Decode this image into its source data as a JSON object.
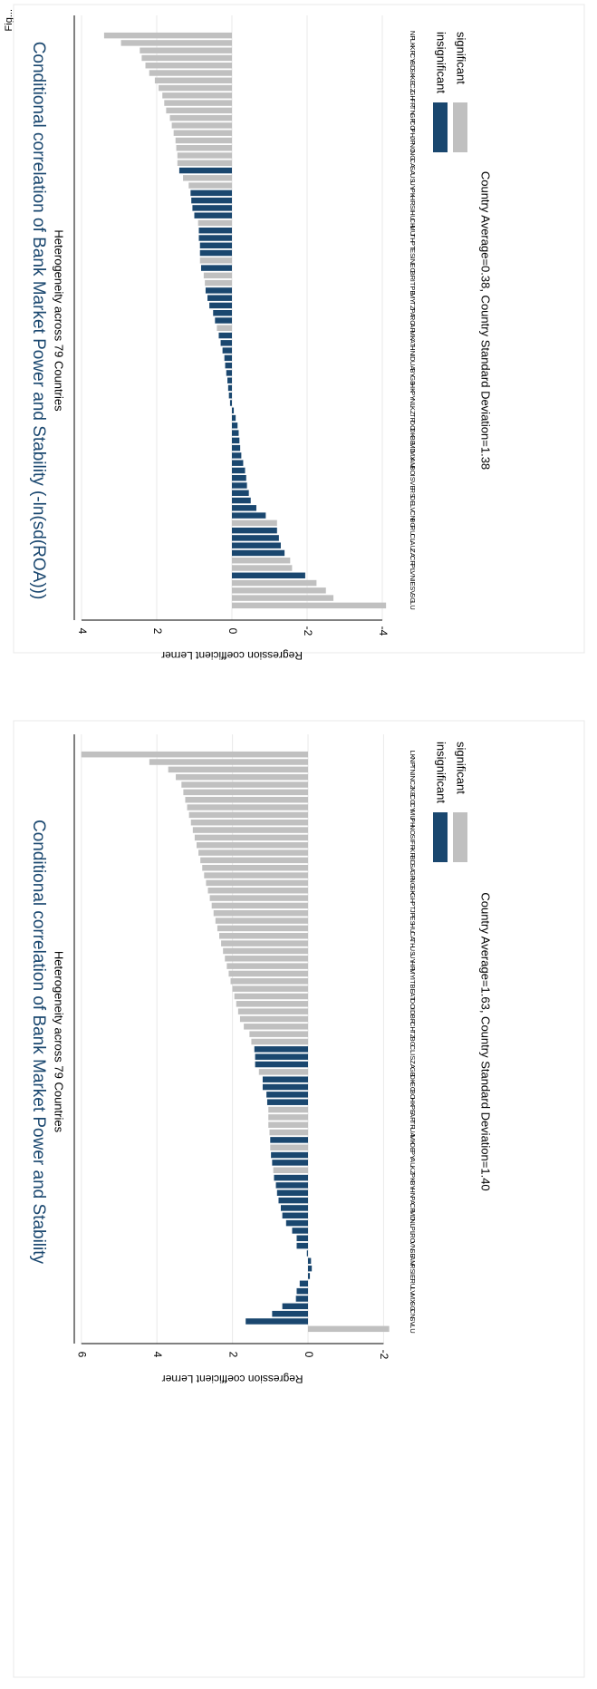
{
  "header_text": "Fig...",
  "chart_data": [
    {
      "type": "bar",
      "orientation": "rotated-90",
      "title": "Conditional correlation of Bank Market Power and Stability",
      "subtitle": "Heterogeneity across 79 Countries",
      "ylabel": "Regression coefficient Lerner",
      "note": "Country Average=1.63, Country Standard Deviation=1.40",
      "ylim": [
        -2,
        6
      ],
      "y_ticks": [
        6,
        4,
        2,
        0,
        -2
      ],
      "y_tick_labels": [
        "6",
        "4",
        "2",
        "0",
        "-2"
      ],
      "grid": true,
      "legend_position": "right",
      "legend": [
        {
          "label": "insignificant",
          "color": "#1a476f"
        },
        {
          "label": "significant",
          "color": "#c0c0c0"
        }
      ],
      "categories": [
        "LU",
        "SV",
        "CN",
        "SG",
        "MX",
        "LV",
        "RU",
        "IE",
        "RS",
        "AM",
        "SE",
        "VN",
        "RO",
        "PL",
        "NL",
        "MD",
        "CR",
        "PA",
        "HN",
        "BY",
        "PK",
        "KZ",
        "AU",
        "PY",
        "DE",
        "MK",
        "UA",
        "TR",
        "AR",
        "PE",
        "HK",
        "BO",
        "EC",
        "DK",
        "GB",
        "ZA",
        "IS",
        "CL",
        "BG",
        "TZ",
        "CH",
        "BR",
        "ID",
        "DO",
        "AT",
        "BE",
        "IT",
        "MY",
        "HR",
        "UY",
        "US",
        "TH",
        "CA",
        "HU",
        "ES",
        "JP",
        "PT",
        "GH",
        "SK",
        "NG",
        "GR",
        "SA",
        "BD",
        "KR",
        "FR",
        "SI",
        "NO",
        "PH",
        "MU",
        "CY",
        "CO",
        "KE",
        "CZ",
        "IN",
        "TN",
        "NP",
        "LK"
      ],
      "values": [
        -2.15,
        1.65,
        0.95,
        0.68,
        0.32,
        0.3,
        0.22,
        -0.05,
        -0.1,
        -0.08,
        0.03,
        0.3,
        0.3,
        0.42,
        0.58,
        0.68,
        0.72,
        0.78,
        0.82,
        0.85,
        0.9,
        0.92,
        0.95,
        0.98,
        1.0,
        1.0,
        1.02,
        1.05,
        1.05,
        1.05,
        1.08,
        1.1,
        1.2,
        1.2,
        1.3,
        1.4,
        1.4,
        1.42,
        1.5,
        1.55,
        1.7,
        1.8,
        1.85,
        1.9,
        1.95,
        2.0,
        2.05,
        2.1,
        2.15,
        2.2,
        2.25,
        2.3,
        2.35,
        2.4,
        2.45,
        2.5,
        2.55,
        2.6,
        2.65,
        2.7,
        2.75,
        2.8,
        2.85,
        2.9,
        2.95,
        3.0,
        3.05,
        3.1,
        3.15,
        3.2,
        3.25,
        3.3,
        3.35,
        3.5,
        3.7,
        4.2,
        6.0
      ],
      "significance": [
        "sig",
        "ins",
        "ins",
        "ins",
        "ins",
        "ins",
        "ins",
        "ins",
        "ins",
        "ins",
        "ins",
        "ins",
        "ins",
        "ins",
        "ins",
        "ins",
        "ins",
        "ins",
        "ins",
        "ins",
        "ins",
        "sig",
        "ins",
        "ins",
        "sig",
        "ins",
        "sig",
        "sig",
        "sig",
        "sig",
        "ins",
        "ins",
        "ins",
        "ins",
        "sig",
        "ins",
        "ins",
        "ins",
        "sig",
        "sig",
        "sig",
        "sig",
        "sig",
        "sig",
        "sig",
        "sig",
        "sig",
        "sig",
        "sig",
        "sig",
        "sig",
        "sig",
        "sig",
        "sig",
        "sig",
        "sig",
        "sig",
        "sig",
        "sig",
        "sig",
        "sig",
        "sig",
        "sig",
        "sig",
        "sig",
        "sig",
        "sig",
        "sig",
        "sig",
        "sig",
        "sig",
        "sig",
        "sig",
        "sig",
        "sig",
        "sig",
        "sig"
      ]
    },
    {
      "type": "bar",
      "orientation": "rotated-90",
      "title": "Conditional correlation of Bank Market Power and Stability (-ln(sd(ROA)))",
      "subtitle": "Heterogeneity across 79 Countries",
      "ylabel": "Regression coefficient Lerner",
      "note": "Country Average=0.38, Country Standard Deviation=1.38",
      "ylim": [
        -4,
        4
      ],
      "y_ticks": [
        4,
        2,
        0,
        -2,
        -4
      ],
      "y_tick_labels": [
        "4",
        "2",
        "0",
        "-2",
        "-4"
      ],
      "grid": true,
      "legend_position": "right",
      "legend": [
        {
          "label": "insignificant",
          "color": "#1a476f"
        },
        {
          "label": "significant",
          "color": "#c0c0c0"
        }
      ],
      "categories": [
        "LU",
        "SG",
        "SV",
        "IE",
        "VN",
        "PL",
        "CR",
        "ZA",
        "AU",
        "CL",
        "RU",
        "BG",
        "CN",
        "LV",
        "DE",
        "RS",
        "VE",
        "IS",
        "BO",
        "AM",
        "MX",
        "MD",
        "BE",
        "DK",
        "DO",
        "TR",
        "KZ",
        "NL",
        "PY",
        "HK",
        "GB",
        "BY",
        "UA",
        "ID",
        "HN",
        "AT",
        "MK",
        "AR",
        "RO",
        "PA",
        "TZ",
        "MY",
        "PE",
        "IT",
        "BR",
        "EC",
        "IN",
        "ES",
        "PT",
        "TH",
        "MU",
        "CH",
        "HU",
        "SI",
        "HR",
        "PK",
        "UY",
        "US",
        "SA",
        "CA",
        "NG",
        "NO",
        "JP",
        "PH",
        "CO",
        "GR",
        "TN",
        "FR",
        "GH",
        "CZ",
        "KE",
        "SK",
        "BD",
        "CY",
        "KR",
        "LK",
        "NP"
      ],
      "values": [
        -4.1,
        -2.7,
        -2.5,
        -2.25,
        -1.95,
        -1.6,
        -1.55,
        -1.4,
        -1.3,
        -1.25,
        -1.2,
        -1.2,
        -0.9,
        -0.65,
        -0.5,
        -0.45,
        -0.4,
        -0.38,
        -0.35,
        -0.3,
        -0.25,
        -0.22,
        -0.2,
        -0.18,
        -0.15,
        -0.1,
        -0.05,
        0.05,
        0.08,
        0.1,
        0.12,
        0.15,
        0.18,
        0.2,
        0.25,
        0.3,
        0.35,
        0.4,
        0.45,
        0.5,
        0.6,
        0.65,
        0.7,
        0.72,
        0.75,
        0.82,
        0.85,
        0.85,
        0.85,
        0.88,
        0.88,
        0.9,
        1.0,
        1.05,
        1.08,
        1.1,
        1.15,
        1.3,
        1.4,
        1.45,
        1.45,
        1.48,
        1.5,
        1.55,
        1.6,
        1.65,
        1.75,
        1.8,
        1.85,
        1.95,
        2.05,
        2.2,
        2.3,
        2.4,
        2.45,
        2.95,
        3.4
      ],
      "significance": [
        "sig",
        "sig",
        "sig",
        "sig",
        "ins",
        "sig",
        "sig",
        "ins",
        "ins",
        "ins",
        "ins",
        "sig",
        "ins",
        "ins",
        "ins",
        "ins",
        "ins",
        "ins",
        "ins",
        "ins",
        "ins",
        "ins",
        "ins",
        "ins",
        "ins",
        "ins",
        "ins",
        "ins",
        "ins",
        "ins",
        "ins",
        "ins",
        "ins",
        "ins",
        "ins",
        "ins",
        "ins",
        "sig",
        "ins",
        "ins",
        "ins",
        "ins",
        "ins",
        "sig",
        "sig",
        "ins",
        "sig",
        "ins",
        "ins",
        "ins",
        "ins",
        "sig",
        "ins",
        "ins",
        "ins",
        "ins",
        "sig",
        "sig",
        "ins",
        "sig",
        "sig",
        "sig",
        "sig",
        "sig",
        "sig",
        "sig",
        "sig",
        "sig",
        "sig",
        "sig",
        "sig",
        "sig",
        "sig",
        "sig",
        "sig",
        "sig",
        "sig"
      ]
    }
  ]
}
